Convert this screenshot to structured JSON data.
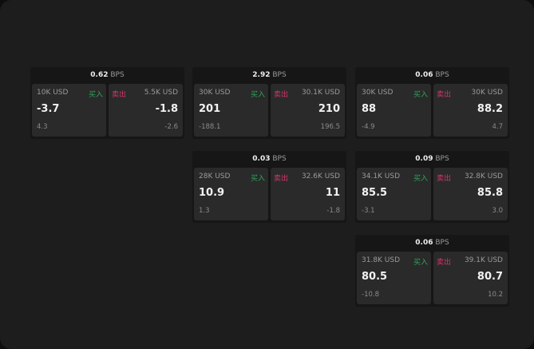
{
  "unit": "BPS",
  "labels": {
    "buy": "买入",
    "sell": "卖出"
  },
  "colors": {
    "buy": "#2fa35a",
    "sell": "#d2366a"
  },
  "panels": [
    {
      "spread": "0.62",
      "buy": {
        "size": "10K USD",
        "price": "-3.7",
        "change": "4.3"
      },
      "sell": {
        "size": "5.5K USD",
        "price": "-1.8",
        "change": "-2.6"
      }
    },
    {
      "spread": "2.92",
      "buy": {
        "size": "30K USD",
        "price": "201",
        "change": "-188.1"
      },
      "sell": {
        "size": "30.1K USD",
        "price": "210",
        "change": "196.5"
      }
    },
    {
      "spread": "0.06",
      "buy": {
        "size": "30K USD",
        "price": "88",
        "change": "-4.9"
      },
      "sell": {
        "size": "30K USD",
        "price": "88.2",
        "change": "4.7"
      }
    },
    {
      "spread": "0.03",
      "buy": {
        "size": "28K USD",
        "price": "10.9",
        "change": "1.3"
      },
      "sell": {
        "size": "32.6K USD",
        "price": "11",
        "change": "-1.8"
      }
    },
    {
      "spread": "0.09",
      "buy": {
        "size": "34.1K USD",
        "price": "85.5",
        "change": "-3.1"
      },
      "sell": {
        "size": "32.8K USD",
        "price": "85.8",
        "change": "3.0"
      }
    },
    {
      "spread": "0.06",
      "buy": {
        "size": "31.8K USD",
        "price": "80.5",
        "change": "-10.8"
      },
      "sell": {
        "size": "39.1K USD",
        "price": "80.7",
        "change": "10.2"
      }
    }
  ]
}
